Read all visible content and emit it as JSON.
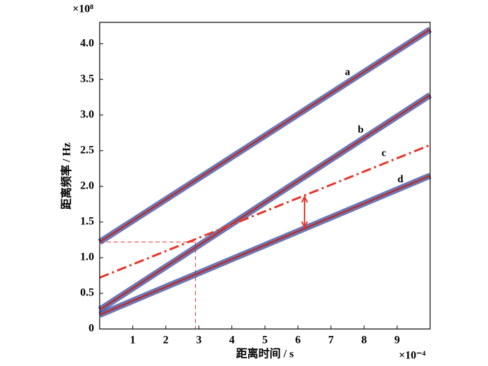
{
  "chart_data": {
    "type": "line",
    "x_label": "距离时间 / s",
    "y_label": "距离频率 / Hz",
    "x_exponent": "×10⁻⁴",
    "y_exponent": "×10⁸",
    "x": [
      0,
      10
    ],
    "series": [
      {
        "name": "a",
        "color": "#c0281e",
        "style": "solid",
        "values": [
          1.22,
          4.2
        ]
      },
      {
        "name": "b",
        "color": "#c0281e",
        "style": "solid",
        "values": [
          0.27,
          3.28
        ]
      },
      {
        "name": "c",
        "color": "#e8342a",
        "style": "dashed",
        "values": [
          0.72,
          2.58
        ]
      },
      {
        "name": "d",
        "color": "#c0281e",
        "style": "solid",
        "values": [
          0.2,
          2.15
        ]
      }
    ],
    "guide": {
      "x": 2.9,
      "y": 1.22
    },
    "arrow": {
      "x": 6.2
    },
    "xlim": [
      0,
      10
    ],
    "ylim": [
      0,
      4.3
    ],
    "xticks": [
      1,
      2,
      3,
      4,
      5,
      6,
      7,
      8,
      9
    ],
    "yticks": [
      0,
      0.5,
      {
        "value": 1,
        "label": "1.0"
      },
      1.5,
      {
        "value": 2,
        "label": "2.0"
      },
      2.5,
      {
        "value": 3,
        "label": "3.0"
      },
      3.5,
      {
        "value": 4,
        "label": "4.0"
      }
    ]
  }
}
